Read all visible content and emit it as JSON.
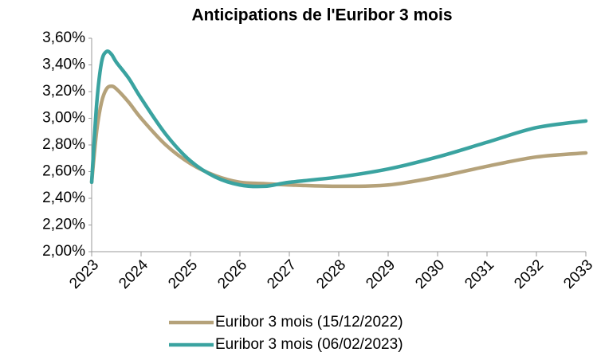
{
  "chart_data": {
    "type": "line",
    "title": "Anticipations de l'Euribor 3 mois",
    "x": [
      2023,
      2023.1,
      2023.2,
      2023.3,
      2023.4,
      2023.5,
      2023.75,
      2024,
      2024.5,
      2025,
      2025.5,
      2026,
      2026.5,
      2027,
      2028,
      2029,
      2030,
      2031,
      2032,
      2033
    ],
    "series": [
      {
        "name": "Euribor 3 mois (15/12/2022)",
        "color": "#b5a27a",
        "values": [
          2.52,
          2.9,
          3.12,
          3.22,
          3.24,
          3.22,
          3.12,
          3.0,
          2.8,
          2.66,
          2.57,
          2.52,
          2.51,
          2.5,
          2.49,
          2.5,
          2.56,
          2.64,
          2.71,
          2.74
        ]
      },
      {
        "name": "Euribor 3 mois (06/02/2023)",
        "color": "#3aa3a0",
        "values": [
          2.52,
          3.1,
          3.42,
          3.5,
          3.48,
          3.42,
          3.3,
          3.15,
          2.88,
          2.68,
          2.56,
          2.5,
          2.49,
          2.52,
          2.56,
          2.62,
          2.71,
          2.82,
          2.93,
          2.98
        ]
      }
    ],
    "xlim": [
      2023,
      2033
    ],
    "xticks": [
      2023,
      2024,
      2025,
      2026,
      2027,
      2028,
      2029,
      2030,
      2031,
      2032,
      2033
    ],
    "ylim": [
      2.0,
      3.6
    ],
    "yticks": [
      {
        "value": 2.0,
        "label": "2,00%"
      },
      {
        "value": 2.2,
        "label": "2,20%"
      },
      {
        "value": 2.4,
        "label": "2,40%"
      },
      {
        "value": 2.6,
        "label": "2,60%"
      },
      {
        "value": 2.8,
        "label": "2,80%"
      },
      {
        "value": 3.0,
        "label": "3,00%"
      },
      {
        "value": 3.2,
        "label": "3,20%"
      },
      {
        "value": 3.4,
        "label": "3,40%"
      },
      {
        "value": 3.6,
        "label": "3,60%"
      }
    ],
    "legend": "bottom"
  }
}
